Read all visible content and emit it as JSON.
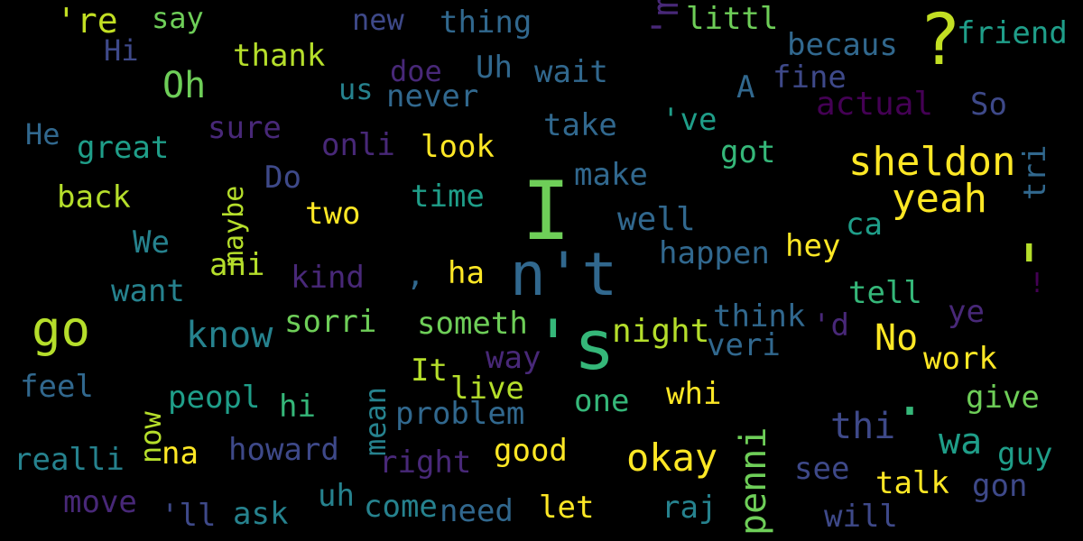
{
  "words": [
    {
      "text": "'re",
      "color": "#c2df23"
    },
    {
      "text": "say",
      "color": "#6ece58"
    },
    {
      "text": "new",
      "color": "#3e4989"
    },
    {
      "text": "thing",
      "color": "#31688e"
    },
    {
      "text": "'m",
      "color": "#482878",
      "vertical": true
    },
    {
      "text": "littl",
      "color": "#6ece58"
    },
    {
      "text": "?",
      "color": "#c2df23"
    },
    {
      "text": "friend",
      "color": "#1f9e89"
    },
    {
      "text": "Hi",
      "color": "#3e4989"
    },
    {
      "text": "thank",
      "color": "#b5de2b"
    },
    {
      "text": "becaus",
      "color": "#31688e"
    },
    {
      "text": "Oh",
      "color": "#6ece58"
    },
    {
      "text": "doe",
      "color": "#482878"
    },
    {
      "text": "Uh",
      "color": "#31688e"
    },
    {
      "text": "wait",
      "color": "#31688e"
    },
    {
      "text": "A",
      "color": "#31688e"
    },
    {
      "text": "fine",
      "color": "#3e4989"
    },
    {
      "text": "us",
      "color": "#26828e"
    },
    {
      "text": "never",
      "color": "#31688e"
    },
    {
      "text": "actual",
      "color": "#440154"
    },
    {
      "text": "So",
      "color": "#3e4989"
    },
    {
      "text": "He",
      "color": "#31688e"
    },
    {
      "text": "sure",
      "color": "#482878"
    },
    {
      "text": "take",
      "color": "#31688e"
    },
    {
      "text": "'ve",
      "color": "#1f9e89"
    },
    {
      "text": "great",
      "color": "#1f9e89"
    },
    {
      "text": "onli",
      "color": "#482878"
    },
    {
      "text": "look",
      "color": "#fde725"
    },
    {
      "text": "tri",
      "color": "#31688e",
      "vertical": true
    },
    {
      "text": "got",
      "color": "#35b779"
    },
    {
      "text": "sheldon",
      "color": "#fde725"
    },
    {
      "text": "maybe",
      "color": "#b5de2b",
      "vertical": true
    },
    {
      "text": "Do",
      "color": "#3e4989"
    },
    {
      "text": "make",
      "color": "#31688e"
    },
    {
      "text": "back",
      "color": "#b5de2b"
    },
    {
      "text": "I",
      "color": "#6ece58"
    },
    {
      "text": "time",
      "color": "#1f9e89"
    },
    {
      "text": "yeah",
      "color": "#fde725"
    },
    {
      "text": "two",
      "color": "#fde725"
    },
    {
      "text": "well",
      "color": "#31688e"
    },
    {
      "text": "ca",
      "color": "#1f9e89"
    },
    {
      "text": "We",
      "color": "#26828e"
    },
    {
      "text": "hey",
      "color": "#fde725"
    },
    {
      "text": "happen",
      "color": "#31688e"
    },
    {
      "text": "ani",
      "color": "#b5de2b"
    },
    {
      "text": "n't",
      "color": "#31688e"
    },
    {
      "text": "kind",
      "color": "#482878"
    },
    {
      "text": ",",
      "color": "#31688e"
    },
    {
      "text": "ha",
      "color": "#fde725"
    },
    {
      "text": "'",
      "color": "#b5de2b"
    },
    {
      "text": "want",
      "color": "#26828e"
    },
    {
      "text": "tell",
      "color": "#35b779"
    },
    {
      "text": "!",
      "color": "#440154"
    },
    {
      "text": "go",
      "color": "#b5de2b"
    },
    {
      "text": "know",
      "color": "#26828e"
    },
    {
      "text": "sorri",
      "color": "#6ece58"
    },
    {
      "text": "someth",
      "color": "#6ece58"
    },
    {
      "text": "think",
      "color": "#31688e"
    },
    {
      "text": "'d",
      "color": "#482878"
    },
    {
      "text": "ye",
      "color": "#482878"
    },
    {
      "text": "night",
      "color": "#b5de2b"
    },
    {
      "text": "No",
      "color": "#fde725"
    },
    {
      "text": "'s",
      "color": "#35b779"
    },
    {
      "text": "veri",
      "color": "#31688e"
    },
    {
      "text": "way",
      "color": "#482878"
    },
    {
      "text": "work",
      "color": "#fde725"
    },
    {
      "text": "feel",
      "color": "#31688e"
    },
    {
      "text": "It",
      "color": "#b5de2b"
    },
    {
      "text": "live",
      "color": "#b5de2b"
    },
    {
      "text": "mean",
      "color": "#26828e",
      "vertical": true
    },
    {
      "text": "whi",
      "color": "#fde725"
    },
    {
      "text": ".",
      "color": "#35b779"
    },
    {
      "text": "give",
      "color": "#6ece58"
    },
    {
      "text": "now",
      "color": "#b5de2b",
      "vertical": true
    },
    {
      "text": "peopl",
      "color": "#1f9e89"
    },
    {
      "text": "hi",
      "color": "#35b779"
    },
    {
      "text": "problem",
      "color": "#31688e"
    },
    {
      "text": "one",
      "color": "#35b779"
    },
    {
      "text": "penni",
      "color": "#6ece58",
      "vertical": true
    },
    {
      "text": "thi",
      "color": "#3e4989"
    },
    {
      "text": "wa",
      "color": "#1f9e89"
    },
    {
      "text": "realli",
      "color": "#26828e"
    },
    {
      "text": "na",
      "color": "#fde725"
    },
    {
      "text": "howard",
      "color": "#3e4989"
    },
    {
      "text": "right",
      "color": "#482878"
    },
    {
      "text": "good",
      "color": "#fde725"
    },
    {
      "text": "okay",
      "color": "#fde725"
    },
    {
      "text": "see",
      "color": "#3e4989"
    },
    {
      "text": "guy",
      "color": "#1f9e89"
    },
    {
      "text": "talk",
      "color": "#fde725"
    },
    {
      "text": "gon",
      "color": "#3e4989"
    },
    {
      "text": "move",
      "color": "#482878"
    },
    {
      "text": "'ll",
      "color": "#3e4989"
    },
    {
      "text": "ask",
      "color": "#26828e"
    },
    {
      "text": "uh",
      "color": "#26828e"
    },
    {
      "text": "come",
      "color": "#26828e"
    },
    {
      "text": "need",
      "color": "#31688e"
    },
    {
      "text": "let",
      "color": "#fde725"
    },
    {
      "text": "raj",
      "color": "#26828e"
    },
    {
      "text": "will",
      "color": "#3e4989"
    }
  ]
}
